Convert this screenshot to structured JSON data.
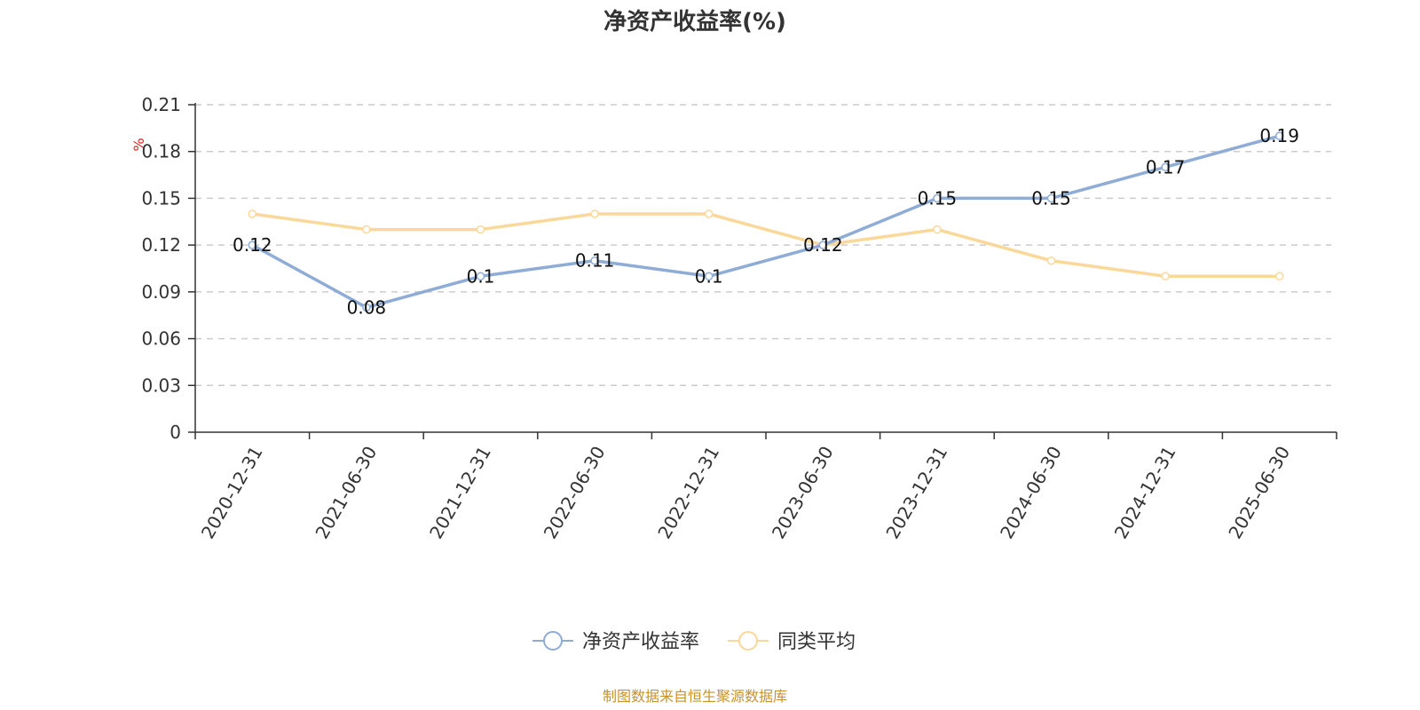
{
  "chart_data": {
    "type": "line",
    "title": "净资产收益率(%)",
    "ylabel": "%",
    "ylim": [
      0,
      0.21
    ],
    "yticks": [
      0,
      0.03,
      0.06,
      0.09,
      0.12,
      0.15,
      0.18,
      0.21
    ],
    "ytick_labels": [
      "0",
      "0.03",
      "0.06",
      "0.09",
      "0.12",
      "0.15",
      "0.18",
      "0.21"
    ],
    "categories": [
      "2020-12-31",
      "2021-06-30",
      "2021-12-31",
      "2022-06-30",
      "2022-12-31",
      "2023-06-30",
      "2023-12-31",
      "2024-06-30",
      "2024-12-31",
      "2025-06-30"
    ],
    "grid": true,
    "legend_position": "bottom-center",
    "series": [
      {
        "name": "净资产收益率",
        "color": "#8eacd6",
        "values": [
          0.12,
          0.08,
          0.1,
          0.11,
          0.1,
          0.12,
          0.15,
          0.15,
          0.17,
          0.19
        ],
        "labels": [
          "0.12",
          "0.08",
          "0.1",
          "0.11",
          "0.1",
          "0.12",
          "0.15",
          "0.15",
          "0.17",
          "0.19"
        ]
      },
      {
        "name": "同类平均",
        "color": "#fad89a",
        "values": [
          0.14,
          0.13,
          0.13,
          0.14,
          0.14,
          0.12,
          0.13,
          0.11,
          0.1,
          0.1
        ]
      }
    ],
    "source": "制图数据来自恒生聚源数据库"
  }
}
